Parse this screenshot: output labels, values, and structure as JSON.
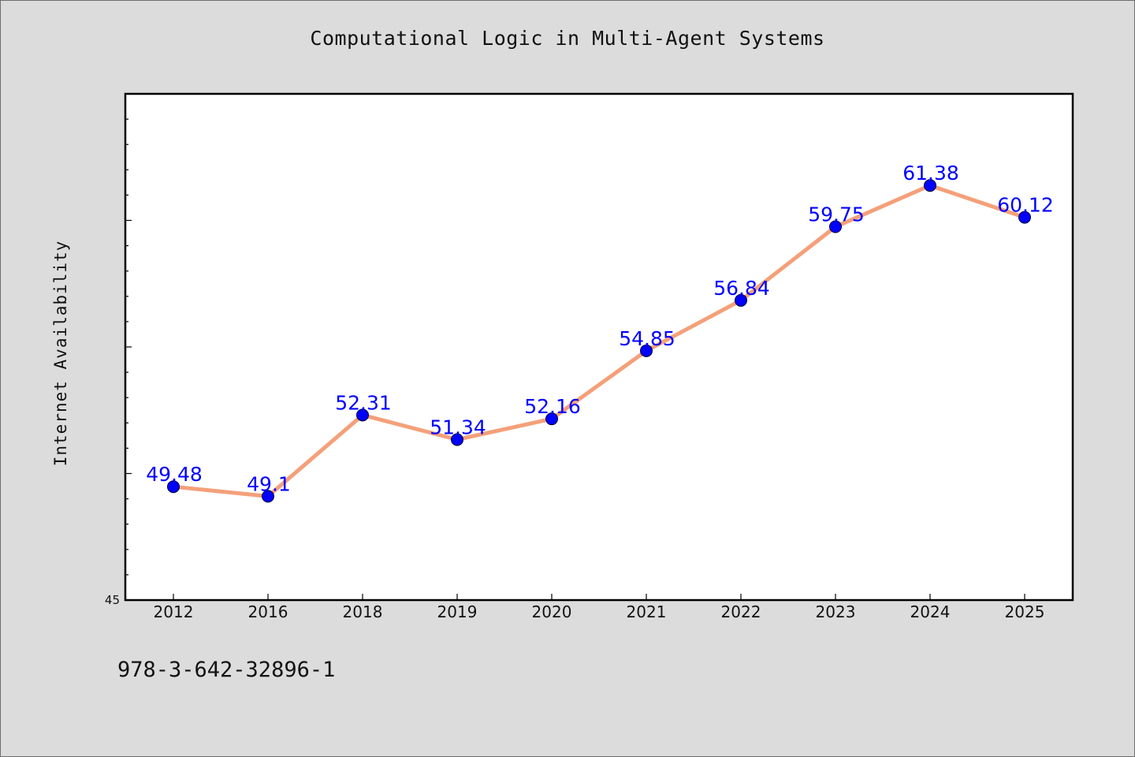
{
  "chart_data": {
    "type": "line",
    "title": "Computational Logic in Multi-Agent Systems",
    "xlabel": "",
    "ylabel": "Internet Availability",
    "categories": [
      "2012",
      "2016",
      "2018",
      "2019",
      "2020",
      "2021",
      "2022",
      "2023",
      "2024",
      "2025"
    ],
    "series": [
      {
        "values": [
          49.48,
          49.1,
          52.31,
          51.34,
          52.16,
          54.85,
          56.84,
          59.75,
          61.38,
          60.12
        ]
      }
    ],
    "data_labels": [
      "49.48",
      "49.1",
      "52.31",
      "51.34",
      "52.16",
      "54.85",
      "56.84",
      "59.75",
      "61.38",
      "60.12"
    ],
    "ylim": [
      45,
      65
    ],
    "yticks_labeled": [
      "45"
    ],
    "grid": false,
    "legend": "none",
    "colors": {
      "line": "#f4a07a",
      "marker": "#0000ff",
      "label": "#0000ff",
      "plot_background": "#ffffff",
      "figure_background": "#dcdcdc"
    }
  },
  "footer": {
    "code": "978-3-642-32896-1"
  }
}
